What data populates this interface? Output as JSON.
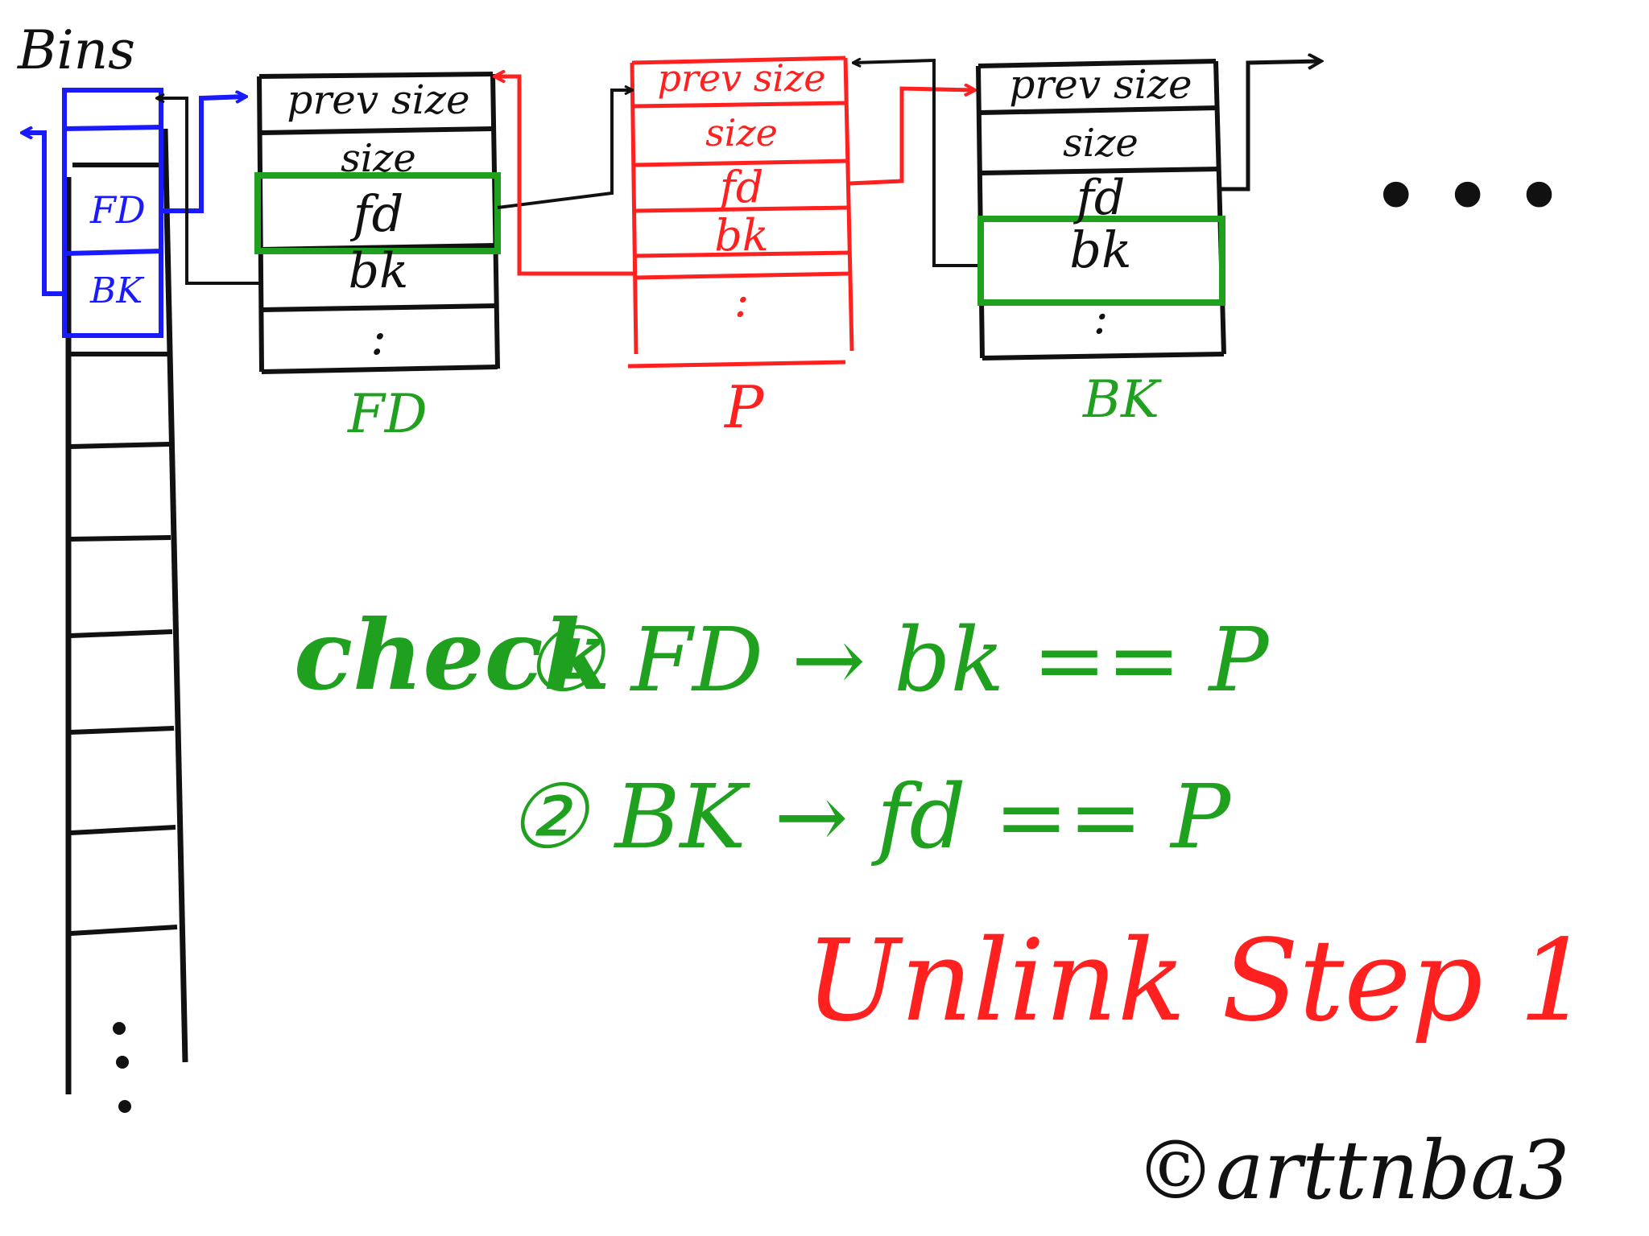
{
  "bins": {
    "title": "Bins",
    "fd_label": "FD",
    "bk_label": "BK"
  },
  "chunks": [
    {
      "name": "chunk-fd",
      "caption": "FD",
      "fields": [
        "prev size",
        "size",
        "fd",
        "bk",
        ":"
      ],
      "highlight": "fd"
    },
    {
      "name": "chunk-p",
      "caption": "P",
      "fields": [
        "prev size",
        "size",
        "fd",
        "bk",
        ":"
      ],
      "highlight": ""
    },
    {
      "name": "chunk-bk",
      "caption": "BK",
      "fields": [
        "prev size",
        "size",
        "fd",
        "bk",
        ":"
      ],
      "highlight": "bk"
    }
  ],
  "ellipsis": "• • •",
  "checks": {
    "prefix": "check",
    "line1": "① FD → bk == P",
    "line2": "② BK → fd == P"
  },
  "title": "Unlink Step 1",
  "credit": "©arttnba3",
  "colors": {
    "black": "#111111",
    "blue": "#1a1aff",
    "red": "#ff2020",
    "green": "#1fa01f"
  }
}
